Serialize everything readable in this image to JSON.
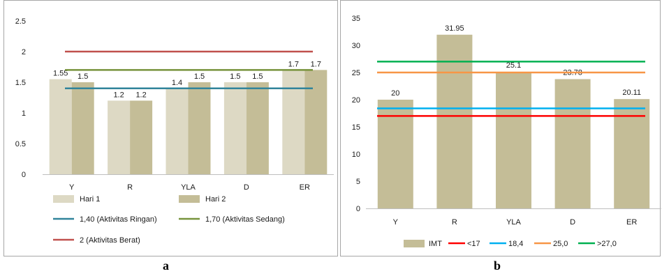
{
  "chart_data": [
    {
      "type": "bar",
      "panel_label": "a",
      "categories": [
        "Y",
        "R",
        "YLA",
        "D",
        "ER"
      ],
      "series": [
        {
          "name": "Hari 1",
          "values": [
            1.55,
            1.2,
            1.4,
            1.5,
            1.7
          ],
          "color": "#ddd9c4"
        },
        {
          "name": "Hari 2",
          "values": [
            1.5,
            1.2,
            1.5,
            1.5,
            1.7
          ],
          "color": "#c4bd97"
        }
      ],
      "reference_lines": [
        {
          "name": "1,40 (Aktivitas Ringan)",
          "value": 1.4,
          "color": "#31849b"
        },
        {
          "name": "1,70 (Aktivitas Sedang)",
          "value": 1.7,
          "color": "#77933c"
        },
        {
          "name": "2 (Aktivitas Berat)",
          "value": 2.0,
          "color": "#c0504d"
        }
      ],
      "ylim": [
        0,
        2.5
      ],
      "yticks": [
        "0",
        "0.5",
        "1",
        "1.5",
        "2",
        "2.5"
      ],
      "ytick_values": [
        0,
        0.5,
        1,
        1.5,
        2,
        2.5
      ],
      "legend_placement": "bottom",
      "grid": false
    },
    {
      "type": "bar",
      "panel_label": "b",
      "categories": [
        "Y",
        "R",
        "YLA",
        "D",
        "ER"
      ],
      "series": [
        {
          "name": "IMT",
          "values": [
            20,
            31.95,
            25.1,
            23.78,
            20.11
          ],
          "color": "#c4bd97"
        }
      ],
      "reference_lines": [
        {
          "name": "<17",
          "value": 17,
          "color": "#ff0000"
        },
        {
          "name": "18,4",
          "value": 18.4,
          "color": "#00b0f0"
        },
        {
          "name": "25,0",
          "value": 25.0,
          "color": "#f79646"
        },
        {
          "name": ">27,0",
          "value": 27.0,
          "color": "#00b050"
        }
      ],
      "ylim": [
        0,
        35
      ],
      "yticks": [
        "0",
        "5",
        "10",
        "15",
        "20",
        "25",
        "30",
        "35"
      ],
      "ytick_values": [
        0,
        5,
        10,
        15,
        20,
        25,
        30,
        35
      ],
      "legend_placement": "bottom",
      "grid": false
    }
  ]
}
